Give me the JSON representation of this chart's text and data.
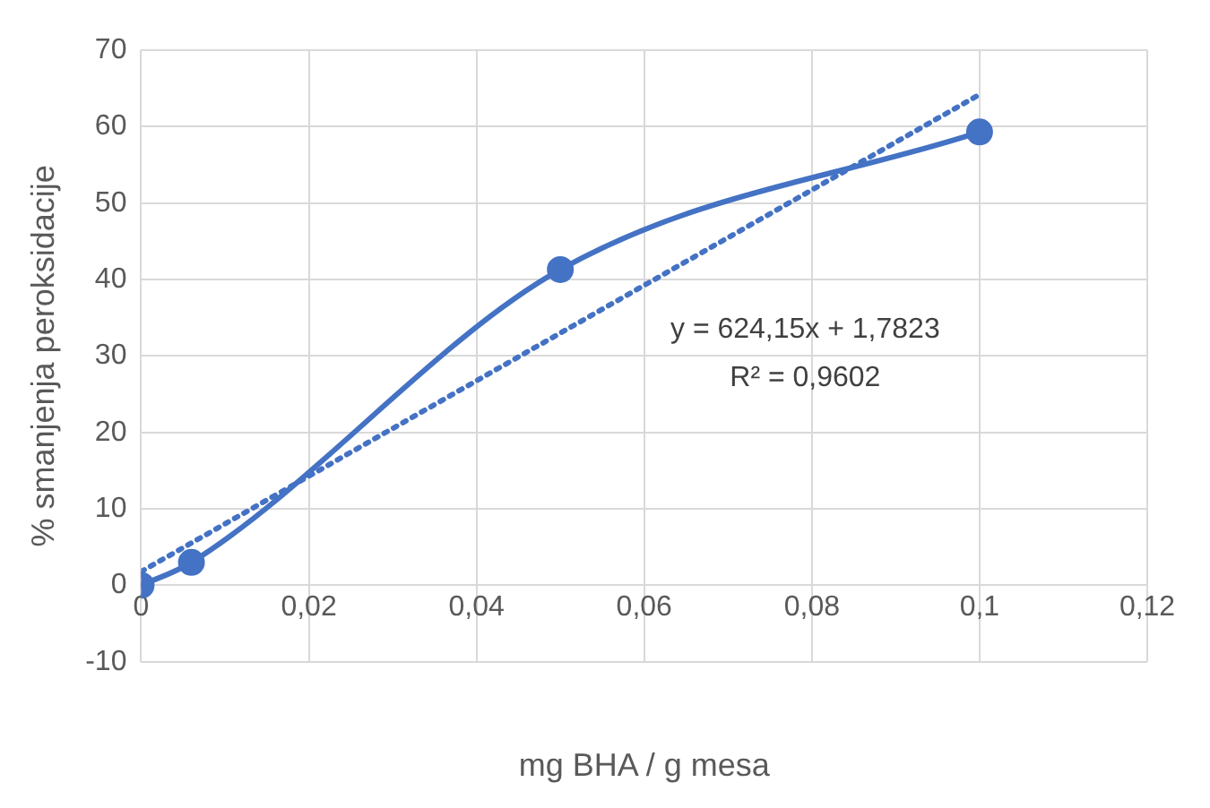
{
  "chart_data": {
    "type": "line",
    "xlabel": "mg BHA / g mesa",
    "ylabel": "% smanjenja peroksidacije",
    "xlim": [
      0,
      0.12
    ],
    "xticks": [
      {
        "value": 0,
        "label": "0"
      },
      {
        "value": 0.02,
        "label": "0,02"
      },
      {
        "value": 0.04,
        "label": "0,04"
      },
      {
        "value": 0.06,
        "label": "0,06"
      },
      {
        "value": 0.08,
        "label": "0,08"
      },
      {
        "value": 0.1,
        "label": "0,1"
      },
      {
        "value": 0.12,
        "label": "0,12"
      }
    ],
    "ylim": [
      -10,
      70
    ],
    "yticks": [
      -10,
      0,
      10,
      20,
      30,
      40,
      50,
      60,
      70
    ],
    "grid": true,
    "legend": false,
    "annotations": [
      "y = 624,15x + 1,7823",
      "R² = 0,9602"
    ],
    "series": [
      {
        "color": "#4472c4",
        "x": [
          0,
          0.006,
          0.05,
          0.1
        ],
        "values": [
          0,
          3,
          41.3,
          59.3
        ],
        "marker": "circle",
        "line_style": "solid"
      },
      {
        "color": "#4472c4",
        "x": [
          0,
          0.1
        ],
        "values": [
          1.8,
          64.2
        ],
        "marker": "none",
        "line_style": "dotted"
      }
    ]
  }
}
